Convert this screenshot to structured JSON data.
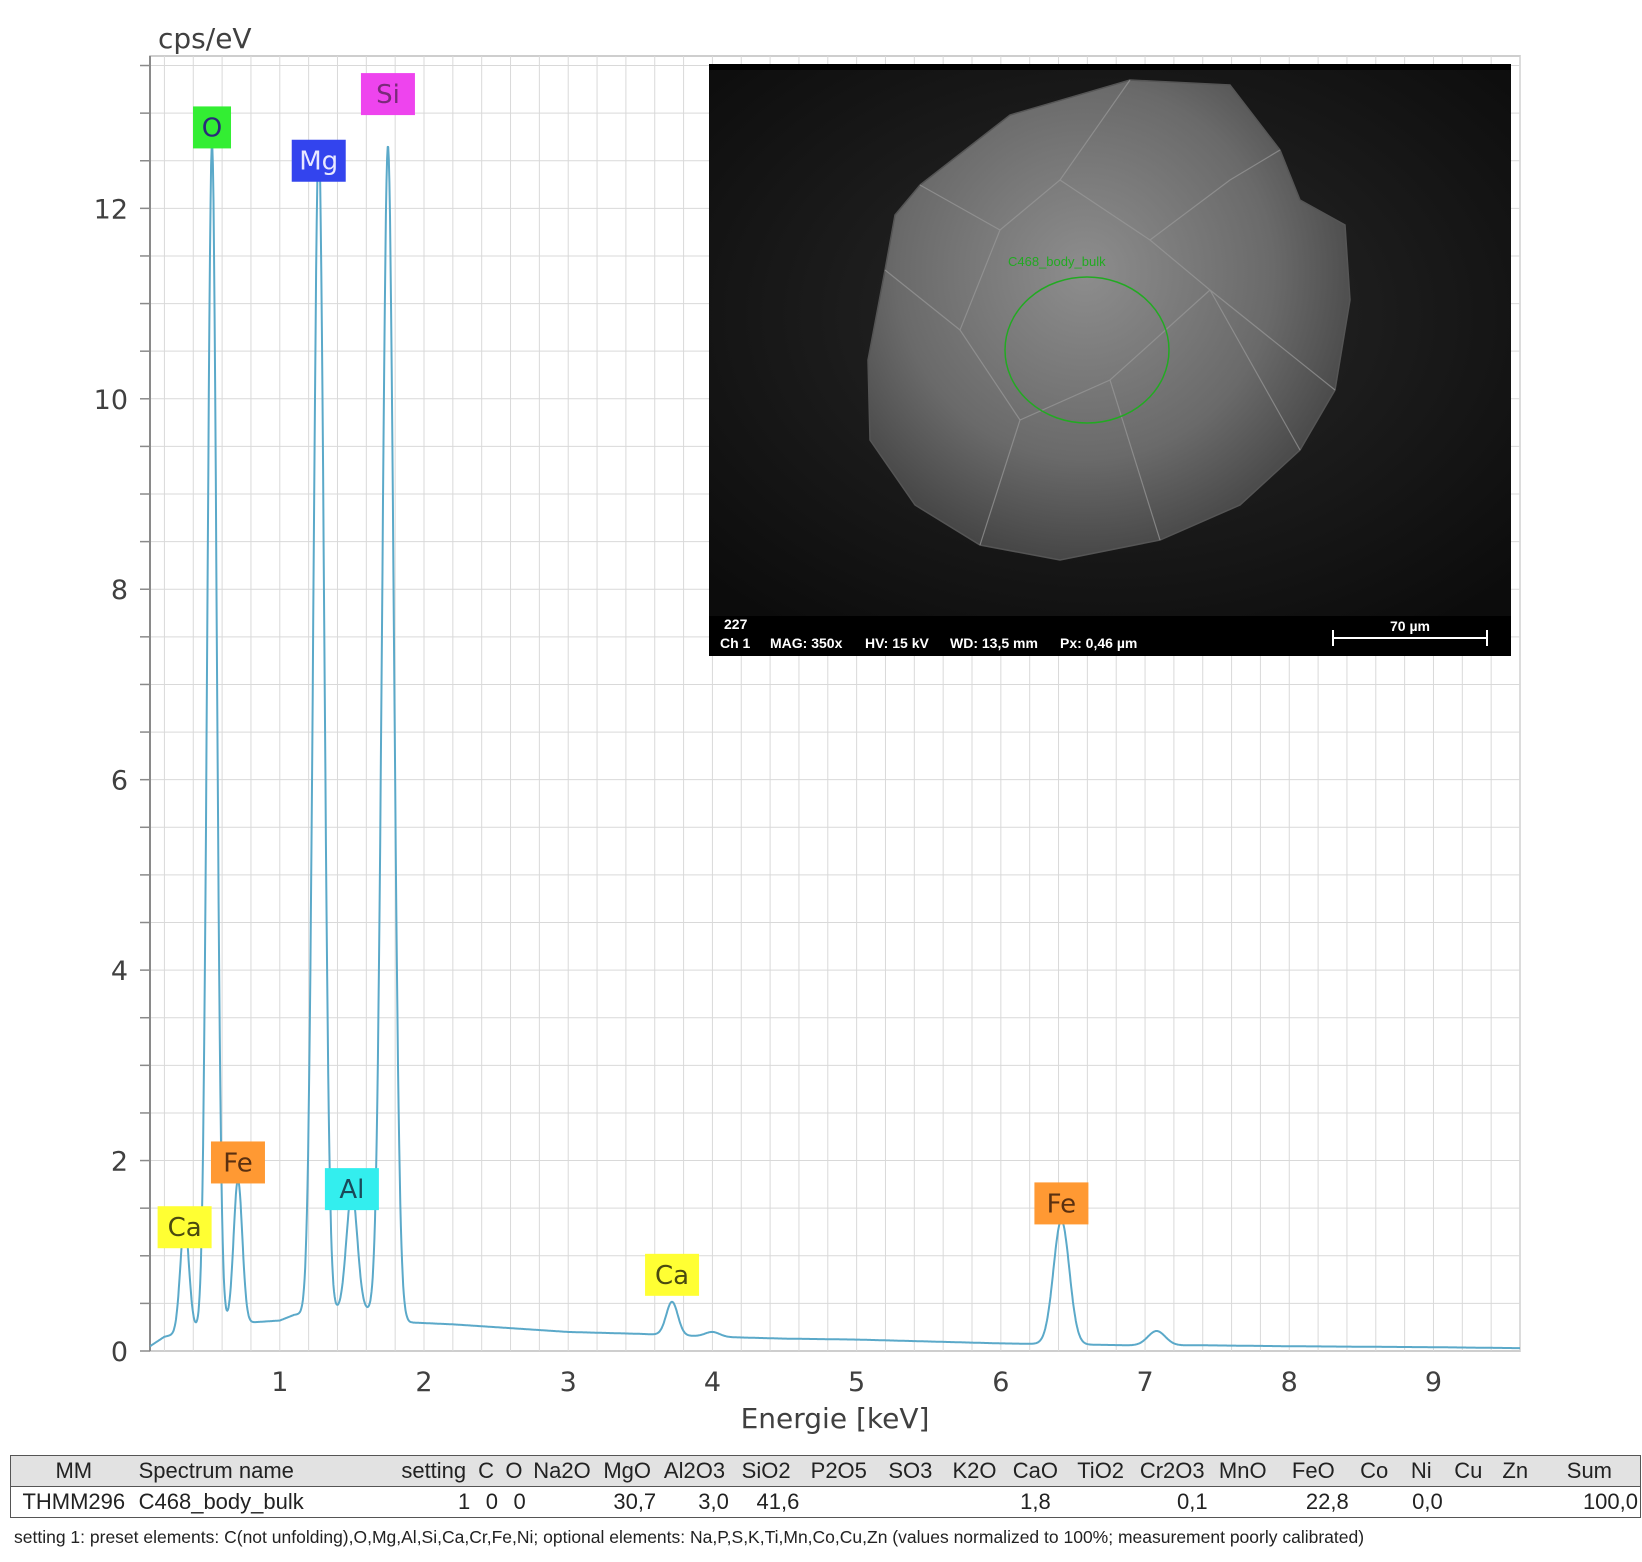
{
  "chart_data": {
    "type": "line",
    "ylabel": "cps/eV",
    "xlabel": "Energie [keV]",
    "xlim": [
      0.1,
      9.6
    ],
    "ylim": [
      0,
      13.6
    ],
    "x_ticks": [
      "1",
      "2",
      "3",
      "4",
      "5",
      "6",
      "7",
      "8",
      "9"
    ],
    "y_ticks": [
      "0",
      "2",
      "4",
      "6",
      "8",
      "10",
      "12"
    ],
    "grid": true,
    "line_color": "#5ba9c9",
    "baseline": [
      [
        0.1,
        0.05
      ],
      [
        0.2,
        0.15
      ],
      [
        0.35,
        0.2
      ],
      [
        0.45,
        0.25
      ],
      [
        0.62,
        0.3
      ],
      [
        0.8,
        0.3
      ],
      [
        1.0,
        0.32
      ],
      [
        1.1,
        0.38
      ],
      [
        1.25,
        0.4
      ],
      [
        1.4,
        0.42
      ],
      [
        1.6,
        0.42
      ],
      [
        1.9,
        0.3
      ],
      [
        2.2,
        0.28
      ],
      [
        2.6,
        0.24
      ],
      [
        3.0,
        0.2
      ],
      [
        3.5,
        0.18
      ],
      [
        4.0,
        0.15
      ],
      [
        4.5,
        0.13
      ],
      [
        5.0,
        0.12
      ],
      [
        6.0,
        0.08
      ],
      [
        6.9,
        0.06
      ],
      [
        7.4,
        0.06
      ],
      [
        8.0,
        0.05
      ],
      [
        9.0,
        0.04
      ],
      [
        9.6,
        0.03
      ]
    ],
    "peaks": [
      {
        "element": "Ca",
        "x": 0.34,
        "y": 1.15,
        "sigma": 0.03
      },
      {
        "element": "O",
        "x": 0.53,
        "y": 12.4,
        "sigma": 0.032
      },
      {
        "element": "Fe",
        "x": 0.71,
        "y": 1.5,
        "sigma": 0.03
      },
      {
        "element": "Mg",
        "x": 1.27,
        "y": 12.3,
        "sigma": 0.037
      },
      {
        "element": "Al",
        "x": 1.5,
        "y": 1.25,
        "sigma": 0.038
      },
      {
        "element": "Si",
        "x": 1.75,
        "y": 12.3,
        "sigma": 0.04
      },
      {
        "element": "Ca",
        "x": 3.72,
        "y": 0.35,
        "sigma": 0.04
      },
      {
        "element": "",
        "x": 4.0,
        "y": 0.05,
        "sigma": 0.05
      },
      {
        "element": "Fe",
        "x": 6.42,
        "y": 1.3,
        "sigma": 0.055
      },
      {
        "element": "",
        "x": 7.08,
        "y": 0.15,
        "sigma": 0.06
      }
    ],
    "peak_labels": [
      {
        "text": "O",
        "x": 0.53,
        "y": 12.85,
        "bg": "#33ee33",
        "fg": "#2a2a7a"
      },
      {
        "text": "Mg",
        "x": 1.27,
        "y": 12.5,
        "bg": "#3344ee",
        "fg": "#e8e8ff"
      },
      {
        "text": "Si",
        "x": 1.75,
        "y": 13.2,
        "bg": "#ee44ee",
        "fg": "#7a2a7a"
      },
      {
        "text": "Fe",
        "x": 0.71,
        "y": 1.98,
        "bg": "#ff9933",
        "fg": "#5a3010"
      },
      {
        "text": "Ca",
        "x": 0.34,
        "y": 1.3,
        "bg": "#ffff33",
        "fg": "#4a4a10"
      },
      {
        "text": "Al",
        "x": 1.5,
        "y": 1.7,
        "bg": "#33eeee",
        "fg": "#1a4a5a"
      },
      {
        "text": "Ca",
        "x": 3.72,
        "y": 0.8,
        "bg": "#ffff33",
        "fg": "#4a4a10"
      },
      {
        "text": "Fe",
        "x": 6.42,
        "y": 1.55,
        "bg": "#ff9933",
        "fg": "#5a3010"
      }
    ]
  },
  "sem_image": {
    "label_number": "227",
    "channel": "Ch 1",
    "magnification": "MAG: 350x",
    "voltage": "HV: 15 kV",
    "working_distance": "WD: 13,5 mm",
    "pixel_size": "Px: 0,46 µm",
    "scale_bar": "70 µm",
    "region_label": "C468_body_bulk"
  },
  "table": {
    "headers": [
      "MM",
      "Spectrum name",
      "setting",
      "C",
      "O",
      "Na2O",
      "MgO",
      "Al2O3",
      "SiO2",
      "P2O5",
      "SO3",
      "K2O",
      "CaO",
      "TiO2",
      "Cr2O3",
      "MnO",
      "FeO",
      "Co",
      "Ni",
      "Cu",
      "Zn",
      "Sum"
    ],
    "row": [
      "THMM296",
      "C468_body_bulk",
      "1",
      "0",
      "0",
      "",
      "30,7",
      "3,0",
      "41,6",
      "",
      "",
      "",
      "1,8",
      "",
      "0,1",
      "",
      "22,8",
      "",
      "0,0",
      "",
      "",
      "100,0"
    ]
  },
  "footnote": "setting 1: preset elements: C(not unfolding),O,Mg,Al,Si,Ca,Cr,Fe,Ni; optional elements: Na,P,S,K,Ti,Mn,Co,Cu,Zn (values normalized to 100%; measurement poorly calibrated)"
}
